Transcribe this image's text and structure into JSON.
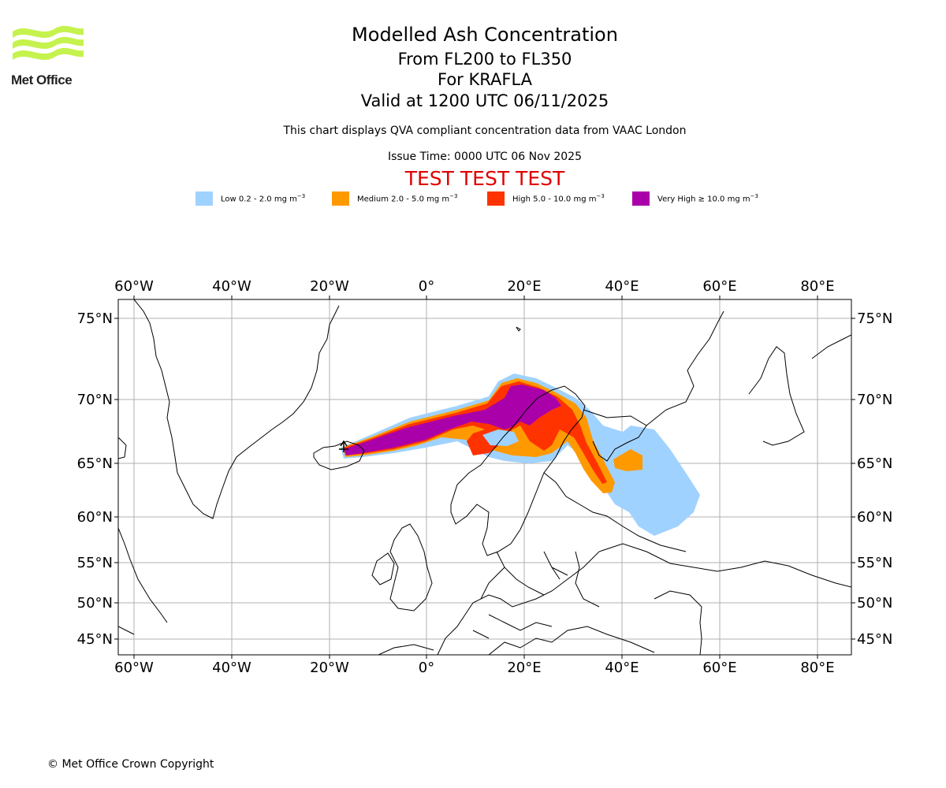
{
  "header": {
    "logo_text": "Met Office",
    "title": "Modelled Ash Concentration",
    "level_range": "From FL200 to FL350",
    "volcano": "For KRAFLA",
    "valid_time": "Valid at 1200 UTC 06/11/2025",
    "compliance_note": "This chart displays QVA compliant concentration data from VAAC London",
    "issue_time": "Issue Time: 0000 UTC 06 Nov 2025",
    "test_banner": "TEST TEST TEST"
  },
  "legend": [
    {
      "label": "Low 0.2 - 2.0 mg m",
      "color": "#a0d2ff"
    },
    {
      "label": "Medium 2.0 - 5.0 mg m",
      "color": "#ff9900"
    },
    {
      "label": "High 5.0 - 10.0 mg m",
      "color": "#ff3300"
    },
    {
      "label": "Very High ≥ 10.0 mg m",
      "color": "#aa00aa"
    }
  ],
  "legend_unit_exponent": "−3",
  "axes": {
    "longitude_labels": [
      "60°W",
      "40°W",
      "20°W",
      "0°",
      "20°E",
      "40°E",
      "60°E",
      "80°E"
    ],
    "latitude_labels": [
      "75°N",
      "70°N",
      "65°N",
      "60°N",
      "55°N",
      "50°N",
      "45°N"
    ]
  },
  "footer": {
    "copyright": "© Met Office Crown Copyright"
  }
}
